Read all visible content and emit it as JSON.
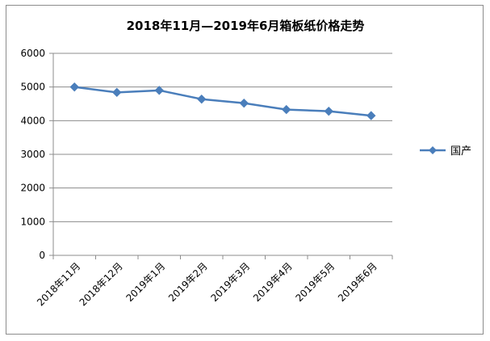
{
  "chart_data": {
    "type": "line",
    "title": "2018年11月—2019年6月箱板纸价格走势",
    "xlabel": "",
    "ylabel": "",
    "categories": [
      "2018年11月",
      "2018年12月",
      "2019年1月",
      "2019年2月",
      "2019年3月",
      "2019年4月",
      "2019年5月",
      "2019年6月"
    ],
    "series": [
      {
        "name": "国产",
        "values": [
          5000,
          4840,
          4900,
          4640,
          4520,
          4330,
          4280,
          4150
        ],
        "color": "#4a7ebb",
        "marker": "diamond"
      }
    ],
    "ylim": [
      0,
      6000
    ],
    "yticks": [
      0,
      1000,
      2000,
      3000,
      4000,
      5000,
      6000
    ],
    "grid": true,
    "legend_position": "right"
  }
}
